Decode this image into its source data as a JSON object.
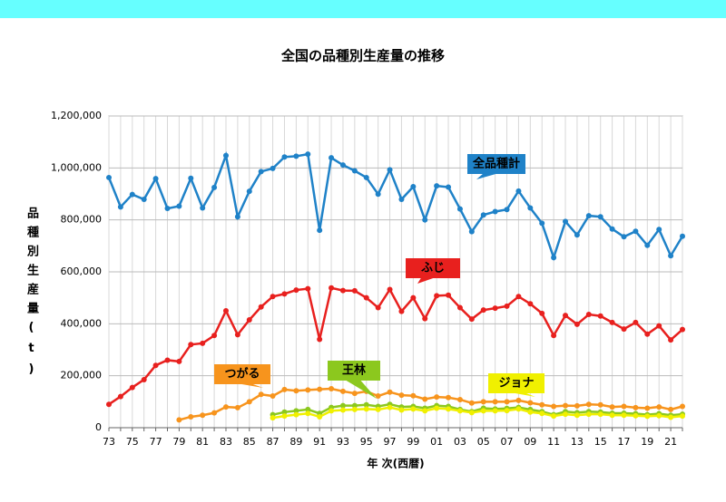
{
  "chart_data": {
    "type": "line",
    "title": "全国の品種別生産量の推移",
    "x_label": "年 次(西暦)",
    "y_label": "品種別生産量(t)",
    "categories": [
      "73",
      null,
      "75",
      null,
      "77",
      null,
      "79",
      null,
      "81",
      null,
      "83",
      null,
      "85",
      null,
      "87",
      null,
      "89",
      null,
      "91",
      null,
      "93",
      null,
      "95",
      null,
      "97",
      null,
      "99",
      null,
      "01",
      null,
      "03",
      null,
      "05",
      null,
      "07",
      null,
      "09",
      null,
      "11",
      null,
      "13",
      null,
      "15",
      null,
      "17",
      null,
      "19",
      null,
      "21",
      null
    ],
    "ylim": [
      0,
      1200000
    ],
    "yticks": [
      0,
      {
        "value": 200000,
        "label": "200,000"
      },
      {
        "value": 400000,
        "label": "400,000"
      },
      {
        "value": 600000,
        "label": "600,000"
      },
      {
        "value": 800000,
        "label": "800,000"
      },
      {
        "value": 1000000,
        "label": "1,000,000"
      },
      {
        "value": 1200000,
        "label": "1,200,000"
      }
    ],
    "grid": true,
    "series": [
      {
        "name": "全品種計",
        "color": "#1f82c8",
        "values": [
          963000,
          850000,
          898000,
          879000,
          959000,
          844000,
          853000,
          960000,
          846000,
          925000,
          1048000,
          812000,
          910000,
          986000,
          998000,
          1042000,
          1045000,
          1053000,
          760000,
          1039000,
          1011000,
          989000,
          963000,
          899000,
          993000,
          879000,
          928000,
          800000,
          931000,
          926000,
          842000,
          755000,
          819000,
          832000,
          840000,
          911000,
          846000,
          787000,
          655000,
          794000,
          742000,
          816000,
          812000,
          765000,
          735000,
          756000,
          702000,
          763000,
          662000,
          737000
        ]
      },
      {
        "name": "ふじ",
        "color": "#e8201e",
        "values": [
          90000,
          120000,
          155000,
          185000,
          240000,
          260000,
          255000,
          320000,
          325000,
          355000,
          450000,
          358000,
          415000,
          465000,
          505000,
          515000,
          530000,
          535000,
          340000,
          538000,
          528000,
          527000,
          500000,
          462000,
          532000,
          448000,
          500000,
          420000,
          508000,
          510000,
          462000,
          418000,
          453000,
          460000,
          468000,
          505000,
          477000,
          440000,
          355000,
          432000,
          398000,
          436000,
          430000,
          405000,
          380000,
          405000,
          360000,
          392000,
          338000,
          378000
        ]
      },
      {
        "name": "つがる",
        "color": "#f7941d",
        "values": [
          null,
          null,
          null,
          null,
          null,
          null,
          30000,
          42000,
          48000,
          57000,
          80000,
          77000,
          100000,
          128000,
          122000,
          147000,
          142000,
          145000,
          148000,
          150000,
          140000,
          132000,
          140000,
          122000,
          137000,
          125000,
          123000,
          110000,
          118000,
          116000,
          108000,
          95000,
          100000,
          100000,
          100000,
          105000,
          96000,
          88000,
          82000,
          85000,
          84000,
          90000,
          88000,
          80000,
          82000,
          77000,
          75000,
          80000,
          70000,
          82000
        ]
      },
      {
        "name": "王林",
        "color": "#8cc81e",
        "values": [
          null,
          null,
          null,
          null,
          null,
          null,
          null,
          null,
          null,
          null,
          null,
          null,
          null,
          null,
          50000,
          60000,
          65000,
          70000,
          55000,
          78000,
          85000,
          85000,
          88000,
          82000,
          90000,
          80000,
          82000,
          75000,
          85000,
          82000,
          70000,
          62000,
          75000,
          72000,
          74000,
          78000,
          70000,
          62000,
          50000,
          62000,
          58000,
          62000,
          60000,
          56000,
          56000,
          54000,
          50000,
          54000,
          48000,
          52000
        ]
      },
      {
        "name": "ジョナ",
        "color": "#f0f000",
        "values": [
          null,
          null,
          null,
          null,
          null,
          null,
          null,
          null,
          null,
          null,
          null,
          null,
          null,
          null,
          38000,
          45000,
          50000,
          55000,
          42000,
          65000,
          68000,
          70000,
          72000,
          70000,
          78000,
          68000,
          72000,
          65000,
          75000,
          72000,
          65000,
          58000,
          65000,
          65000,
          66000,
          72000,
          60000,
          55000,
          45000,
          52000,
          48000,
          52000,
          52000,
          48000,
          48000,
          46000,
          44000,
          46000,
          40000,
          45000
        ]
      }
    ]
  }
}
